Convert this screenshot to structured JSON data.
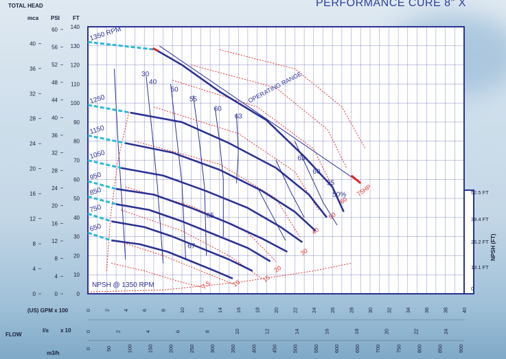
{
  "header": {
    "title": "PERFORMANCE CURE 8\" X",
    "total_head": "TOTAL HEAD",
    "col_mca": "mca",
    "col_psi": "PSI",
    "col_ft": "FT"
  },
  "footer": {
    "flow": "FLOW",
    "gpm_label": "(US) GPM x 100",
    "ls_label": "l/s",
    "ls_mult": "x 10",
    "m3h_label": "m3/h"
  },
  "npsh": {
    "axis_label": "NPSH (FT)",
    "curve_label": "NPSH @ 1350 RPM",
    "ticks": [
      "52.5 FT",
      "39.4 FT",
      "26.2 FT",
      "13.1 FT",
      "0"
    ]
  },
  "chart_data": {
    "type": "line",
    "title": "PERFORMANCE CURE 8\" X",
    "xlabel": "(US) GPM x 100",
    "ylabel": "TOTAL HEAD",
    "xlim": [
      0,
      40
    ],
    "ylim": [
      0,
      140
    ],
    "y_ticks_ft": [
      "140",
      "130",
      "120",
      "110",
      "100",
      "90",
      "80",
      "70",
      "60",
      "50",
      "40",
      "30",
      "20",
      "10",
      "0"
    ],
    "y_ticks_psi": [
      "60",
      "56",
      "52",
      "48",
      "44",
      "40",
      "36",
      "32",
      "28",
      "24",
      "20",
      "16",
      "12",
      "8",
      "4",
      "0"
    ],
    "y_ticks_mca": [
      "40",
      "36",
      "32",
      "28",
      "24",
      "20",
      "16",
      "12",
      "8",
      "4",
      "0"
    ],
    "x_ticks_gpm": [
      "0",
      "2",
      "4",
      "6",
      "8",
      "10",
      "12",
      "14",
      "16",
      "18",
      "20",
      "22",
      "24",
      "26",
      "28",
      "30",
      "32",
      "34",
      "36",
      "38",
      "40"
    ],
    "x_ticks_ls": [
      "0",
      "2",
      "4",
      "6",
      "8",
      "10",
      "12",
      "14",
      "16",
      "18",
      "20",
      "22",
      "24"
    ],
    "x_ticks_m3h": [
      "0",
      "50",
      "100",
      "150",
      "200",
      "250",
      "300",
      "350",
      "400",
      "450",
      "500",
      "550",
      "600",
      "650",
      "700",
      "750",
      "800",
      "850",
      "900"
    ],
    "series": [
      {
        "name": "1350 RPM",
        "x": [
          7.2,
          10,
          14,
          19,
          23,
          26,
          27.2
        ],
        "y": [
          128,
          120,
          106,
          91,
          72,
          56,
          43
        ]
      },
      {
        "name": "1250",
        "x": [
          4.5,
          10,
          15,
          20,
          23.5,
          25.4
        ],
        "y": [
          95,
          90,
          79,
          66,
          52,
          40
        ]
      },
      {
        "name": "1150",
        "x": [
          4,
          9,
          14,
          18.5,
          22,
          24.2
        ],
        "y": [
          79,
          74,
          65,
          54,
          43,
          33
        ]
      },
      {
        "name": "1050",
        "x": [
          3.5,
          8,
          12.5,
          17,
          20.5,
          22.8
        ],
        "y": [
          66,
          62,
          54,
          45,
          35,
          27
        ]
      },
      {
        "name": "950",
        "x": [
          3,
          7,
          11,
          15,
          18.5,
          21.2
        ],
        "y": [
          55,
          52,
          45,
          37,
          29,
          22
        ]
      },
      {
        "name": "850",
        "x": [
          3,
          6.5,
          10,
          13.5,
          17,
          19.4
        ],
        "y": [
          47,
          44,
          38,
          31,
          24,
          17
        ]
      },
      {
        "name": "750",
        "x": [
          2.5,
          6,
          9,
          12,
          15,
          17.5
        ],
        "y": [
          38,
          35,
          30,
          24,
          18,
          12
        ]
      },
      {
        "name": "650",
        "x": [
          2.5,
          5.5,
          8.5,
          11,
          13.5,
          15.4
        ],
        "y": [
          28,
          26,
          22,
          17,
          12,
          8
        ]
      }
    ],
    "efficiency_labels": [
      "30",
      "40",
      "50",
      "55",
      "60",
      "63",
      "65",
      "67",
      "63",
      "60",
      "55",
      "50%"
    ],
    "power_labels": [
      "7.5",
      "10",
      "15",
      "20",
      "30",
      "40",
      "50",
      "60",
      "75HP"
    ],
    "annotations": [
      "OPERATING RANGE"
    ],
    "grid": true
  },
  "colors": {
    "curve": "#2a3192",
    "power": "#e0322b",
    "extension": "#2bb9d9",
    "frame": "#2a3192",
    "grid": "#2a3192"
  }
}
